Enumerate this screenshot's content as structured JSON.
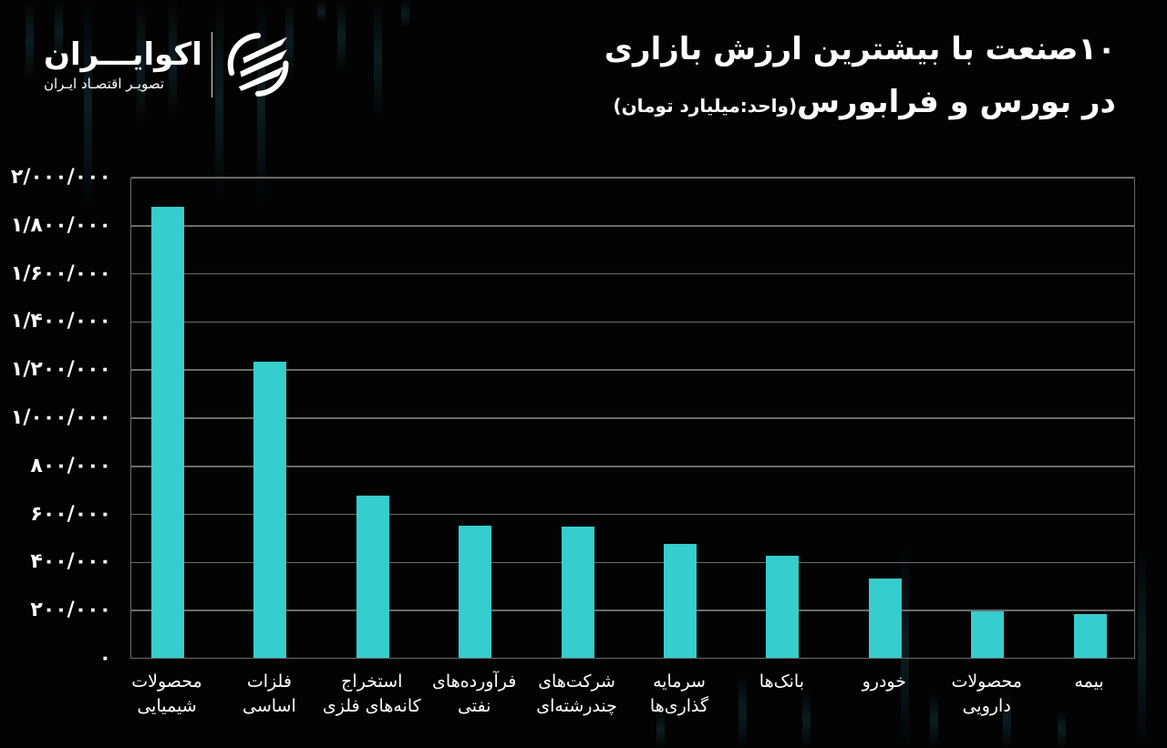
{
  "logo": {
    "name": "اکوایـــران",
    "subtitle": "تصویـر اقتصـاد ایـران",
    "icon": "ecoiran-swoosh-logo-icon"
  },
  "header": {
    "title_line1": "۱۰صنعت با بیشترین ارزش بازاری",
    "title_line2": "در بورس و فرابورس",
    "unit": "(واحد:میلیارد تومان)"
  },
  "colors": {
    "background": "#030303",
    "bar": "#35cdcd",
    "grid": "#6b6b6b",
    "text": "#ffffff"
  },
  "chart_data": {
    "type": "bar",
    "title": "۱۰صنعت با بیشترین ارزش بازاری در بورس و فرابورس",
    "subtitle": "(واحد:میلیارد تومان)",
    "xlabel": "",
    "ylabel": "",
    "ylim": [
      0,
      2000000
    ],
    "grid": true,
    "legend": "none",
    "y_ticks": [
      0,
      200000,
      400000,
      600000,
      800000,
      1000000,
      1200000,
      1400000,
      1600000,
      1800000,
      2000000
    ],
    "y_tick_labels": [
      "۰",
      "۲۰۰/۰۰۰",
      "۴۰۰/۰۰۰",
      "۶۰۰/۰۰۰",
      "۸۰۰/۰۰۰",
      "۱/۰۰۰/۰۰۰",
      "۱/۲۰۰/۰۰۰",
      "۱/۴۰۰/۰۰۰",
      "۱/۶۰۰/۰۰۰",
      "۱/۸۰۰/۰۰۰",
      "۲/۰۰۰/۰۰۰"
    ],
    "categories": [
      "محصولات\nشیمیایی",
      "فلزات\nاساسی",
      "استخراج\nکانه‌های فلزی",
      "فرآورده‌های\nنفتی",
      "شرکت‌های\nچندرشته‌ای",
      "سرمایه\nگذاری‌ها",
      "بانک‌ها",
      "خودرو",
      "محصولات\nدارویی",
      "بیمه"
    ],
    "values": [
      1875000,
      1230000,
      675000,
      550000,
      547000,
      473000,
      424000,
      330000,
      193000,
      182000
    ]
  }
}
